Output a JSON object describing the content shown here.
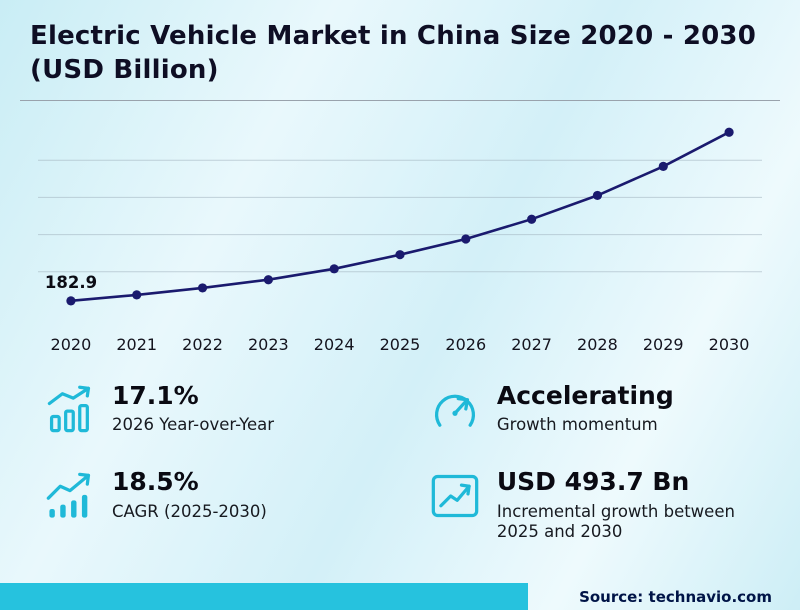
{
  "title": "Electric Vehicle Market in China Size 2020 - 2030 (USD Billion)",
  "chart_data": {
    "type": "line",
    "title": "Electric Vehicle Market in China Size 2020 - 2030 (USD Billion)",
    "x": [
      "2020",
      "2021",
      "2022",
      "2023",
      "2024",
      "2025",
      "2026",
      "2027",
      "2028",
      "2029",
      "2030"
    ],
    "values": [
      182.9,
      207,
      235,
      268,
      312,
      369.1,
      432.2,
      512,
      608,
      725,
      862.8
    ],
    "first_point_label": "182.9",
    "ylim": [
      150,
      900
    ],
    "gridline_values": [
      300,
      450,
      600,
      750
    ],
    "line_color": "#1a1a6e",
    "grid": true,
    "legend": "none",
    "xlabel": "",
    "ylabel": ""
  },
  "stats": [
    {
      "icon": "bar-chart-icon",
      "value": "17.1%",
      "label": "2026 Year-over-Year"
    },
    {
      "icon": "gauge-icon",
      "value": "Accelerating",
      "label": "Growth momentum"
    },
    {
      "icon": "trend-up-icon",
      "value": "18.5%",
      "label": "CAGR (2025-2030)"
    },
    {
      "icon": "growth-chart-icon",
      "value": "USD 493.7 Bn",
      "label": "Incremental growth between 2025 and 2030"
    }
  ],
  "source": "Source: technavio.com",
  "colors": {
    "accent": "#26c2de",
    "icon": "#1fb9d8",
    "line": "#1a1a6e"
  }
}
